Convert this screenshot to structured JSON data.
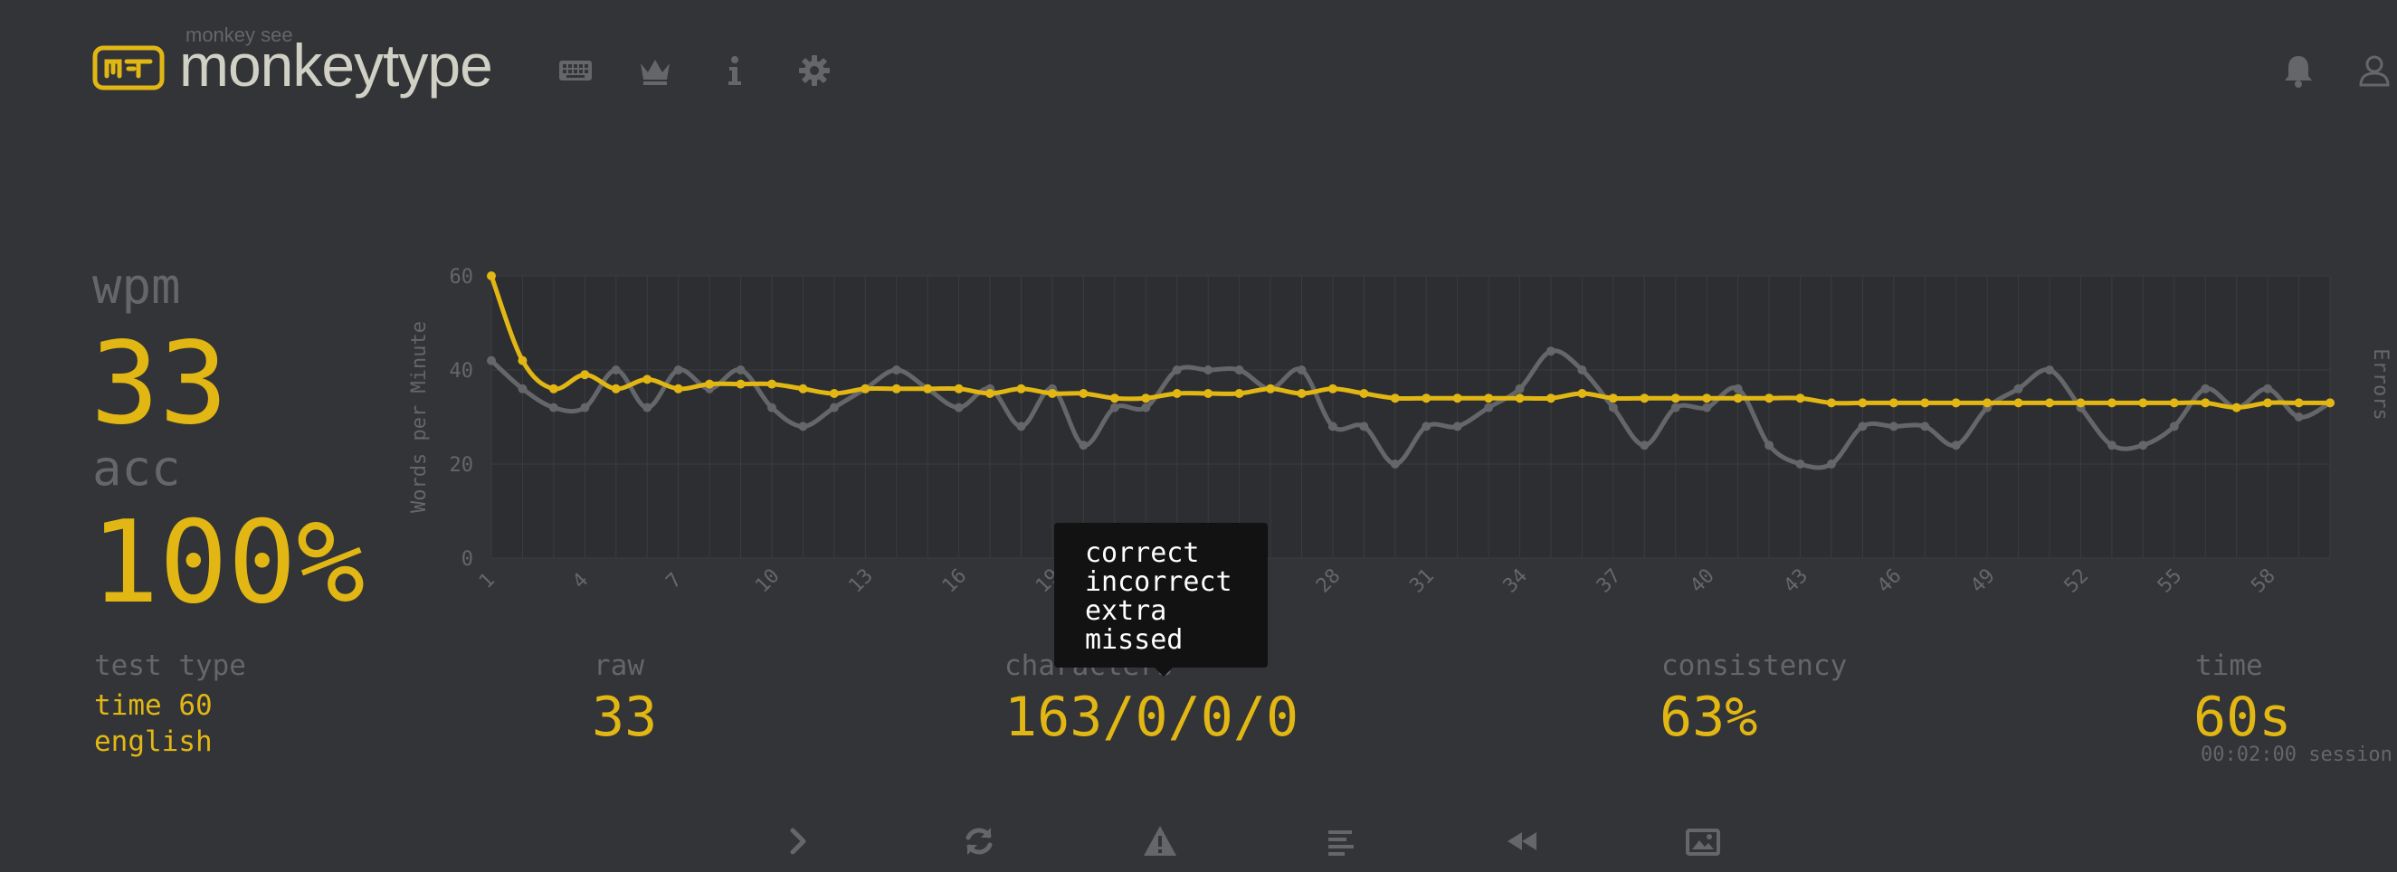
{
  "header": {
    "logo_top": "monkey see",
    "logo_text": "monkeytype",
    "logo_glyph": "m⁻t",
    "nav_icons": [
      "keyboard-icon",
      "crown-icon",
      "info-icon",
      "gear-icon"
    ],
    "right_icons": [
      "bell-icon",
      "user-icon"
    ]
  },
  "stats": {
    "wpm_label": "wpm",
    "wpm_value": "33",
    "acc_label": "acc",
    "acc_value": "100%",
    "test_type_label": "test type",
    "test_type_value": "time 60",
    "language": "english",
    "raw_label": "raw",
    "raw_value": "33",
    "characters_label": "characters",
    "characters_value": "163/0/0/0",
    "consistency_label": "consistency",
    "consistency_value": "63%",
    "time_label": "time",
    "time_value": "60s",
    "session": "00:02:00 session"
  },
  "tooltip": {
    "lines": [
      "correct",
      "incorrect",
      "extra",
      "missed"
    ]
  },
  "chart_data": {
    "type": "line",
    "ylabel": "Words per Minute",
    "y2label": "Errors",
    "ylim": [
      0,
      60
    ],
    "yticks": [
      0,
      20,
      40,
      60
    ],
    "x": [
      1,
      2,
      3,
      4,
      5,
      6,
      7,
      8,
      9,
      10,
      11,
      12,
      13,
      14,
      15,
      16,
      17,
      18,
      19,
      20,
      21,
      22,
      23,
      24,
      25,
      26,
      27,
      28,
      29,
      30,
      31,
      32,
      33,
      34,
      35,
      36,
      37,
      38,
      39,
      40,
      41,
      42,
      43,
      44,
      45,
      46,
      47,
      48,
      49,
      50,
      51,
      52,
      53,
      54,
      55,
      56,
      57,
      58,
      59,
      60
    ],
    "xticks": [
      1,
      4,
      7,
      10,
      13,
      16,
      19,
      22,
      25,
      28,
      31,
      34,
      37,
      40,
      43,
      46,
      49,
      52,
      55,
      58
    ],
    "grid": true,
    "series": [
      {
        "name": "wpm",
        "color": "#e2b714",
        "values": [
          60,
          42,
          36,
          39,
          36,
          38,
          36,
          37,
          37,
          37,
          36,
          35,
          36,
          36,
          36,
          36,
          35,
          36,
          35,
          35,
          34,
          34,
          35,
          35,
          35,
          36,
          35,
          36,
          35,
          34,
          34,
          34,
          34,
          34,
          34,
          35,
          34,
          34,
          34,
          34,
          34,
          34,
          34,
          33,
          33,
          33,
          33,
          33,
          33,
          33,
          33,
          33,
          33,
          33,
          33,
          33,
          32,
          33,
          33,
          33
        ]
      },
      {
        "name": "raw",
        "color": "#646669",
        "values": [
          42,
          36,
          32,
          32,
          40,
          32,
          40,
          36,
          40,
          32,
          28,
          32,
          36,
          40,
          36,
          32,
          36,
          28,
          36,
          24,
          32,
          32,
          40,
          40,
          40,
          36,
          40,
          28,
          28,
          20,
          28,
          28,
          32,
          36,
          44,
          40,
          32,
          24,
          32,
          32,
          36,
          24,
          20,
          20,
          28,
          28,
          28,
          24,
          32,
          36,
          40,
          32,
          24,
          24,
          28,
          36,
          32,
          36,
          30,
          33
        ]
      }
    ]
  },
  "bottom_icons": [
    "chevron-right-icon",
    "restart-icon",
    "warning-icon",
    "words-history-icon",
    "replay-icon",
    "screenshot-icon"
  ],
  "colors": {
    "background": "#323437",
    "main": "#e2b714",
    "sub": "#646669",
    "text": "#d1d0c5"
  }
}
